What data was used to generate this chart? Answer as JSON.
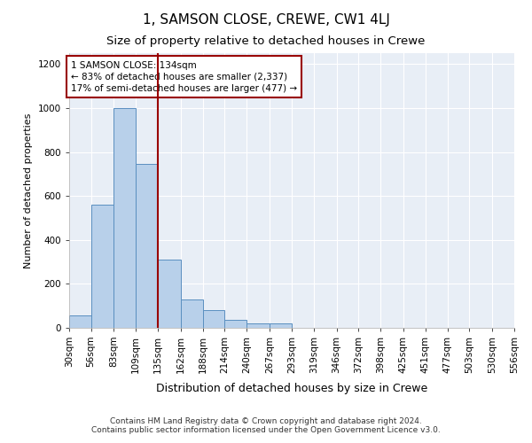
{
  "title": "1, SAMSON CLOSE, CREWE, CW1 4LJ",
  "subtitle": "Size of property relative to detached houses in Crewe",
  "xlabel": "Distribution of detached houses by size in Crewe",
  "ylabel": "Number of detached properties",
  "footer_line1": "Contains HM Land Registry data © Crown copyright and database right 2024.",
  "footer_line2": "Contains public sector information licensed under the Open Government Licence v3.0.",
  "annotation_line1": "1 SAMSON CLOSE: 134sqm",
  "annotation_line2": "← 83% of detached houses are smaller (2,337)",
  "annotation_line3": "17% of semi-detached houses are larger (477) →",
  "bins": [
    30,
    56,
    83,
    109,
    135,
    162,
    188,
    214,
    240,
    267,
    293,
    319,
    346,
    372,
    398,
    425,
    451,
    477,
    503,
    530,
    556
  ],
  "counts": [
    55,
    560,
    1000,
    745,
    310,
    130,
    80,
    35,
    18,
    20,
    0,
    0,
    0,
    0,
    0,
    0,
    0,
    0,
    0,
    0
  ],
  "bar_color": "#b8d0ea",
  "bar_edge_color": "#5a8fc0",
  "vline_color": "#990000",
  "vline_x": 135,
  "annotation_box_edge": "#990000",
  "background_color": "#e8eef6",
  "grid_color": "#ffffff",
  "ylim": [
    0,
    1250
  ],
  "yticks": [
    0,
    200,
    400,
    600,
    800,
    1000,
    1200
  ],
  "title_fontsize": 11,
  "subtitle_fontsize": 9.5,
  "xlabel_fontsize": 9,
  "ylabel_fontsize": 8,
  "tick_fontsize": 7.5,
  "annotation_fontsize": 7.5,
  "footer_fontsize": 6.5
}
